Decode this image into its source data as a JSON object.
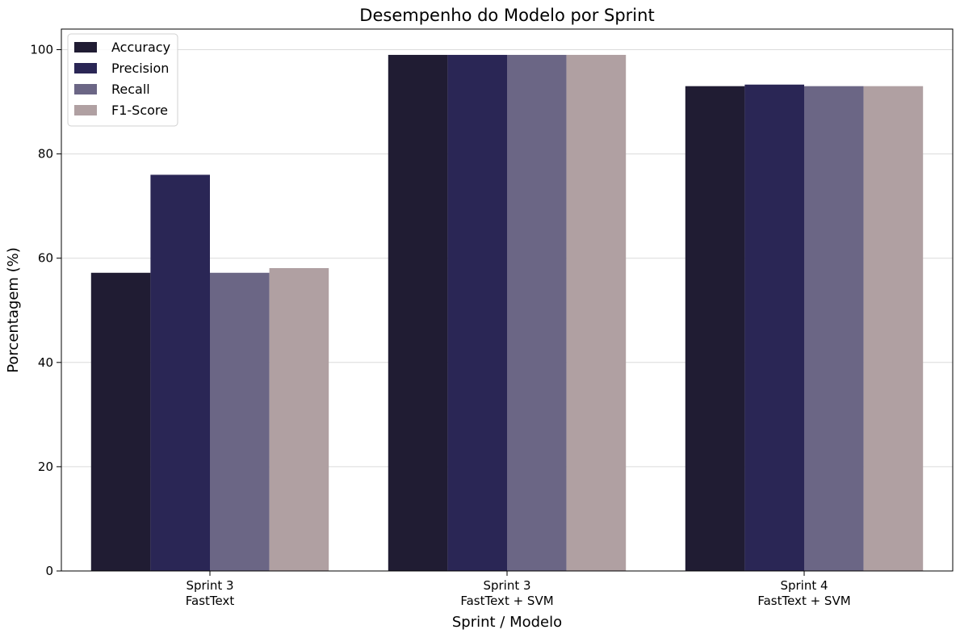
{
  "chart_data": {
    "type": "bar",
    "title": "Desempenho do Modelo por Sprint",
    "xlabel": "Sprint / Modelo",
    "ylabel": "Porcentagem (%)",
    "categories": [
      [
        "Sprint 3",
        "FastText"
      ],
      [
        "Sprint 3",
        "FastText + SVM"
      ],
      [
        "Sprint 4",
        "FastText + SVM"
      ]
    ],
    "series": [
      {
        "name": "Accuracy",
        "color": "#201c33",
        "values": [
          57.2,
          99.0,
          93.0
        ]
      },
      {
        "name": "Precision",
        "color": "#2a2655",
        "values": [
          76.0,
          99.0,
          93.3
        ]
      },
      {
        "name": "Recall",
        "color": "#6b6685",
        "values": [
          57.2,
          99.0,
          93.0
        ]
      },
      {
        "name": "F1-Score",
        "color": "#b0a0a2",
        "values": [
          58.1,
          99.0,
          93.0
        ]
      }
    ],
    "ylim": [
      0,
      103.95
    ],
    "yticks": [
      0,
      20,
      40,
      60,
      80,
      100
    ],
    "grid": "y",
    "legend_position": "top-left"
  }
}
